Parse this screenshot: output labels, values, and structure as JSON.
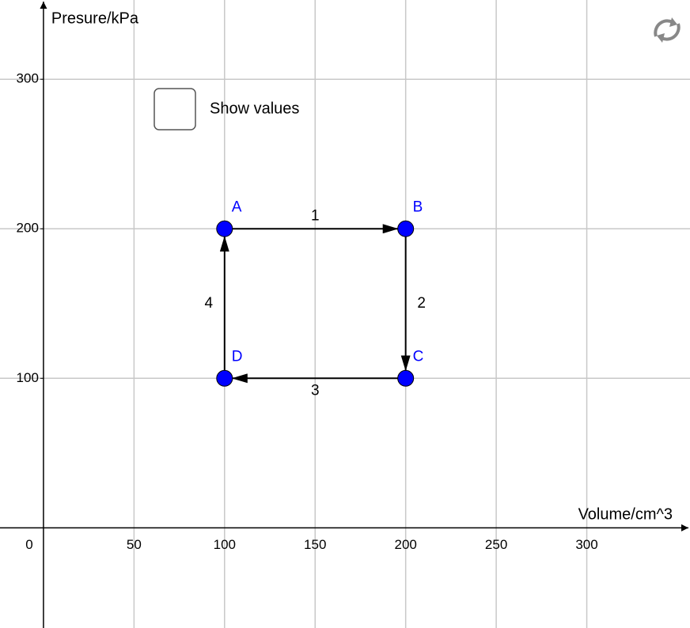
{
  "chart_data": {
    "type": "scatter",
    "x_label": "Volume/cm^3",
    "y_label": "Presure/kPa",
    "xlim": [
      -24,
      357
    ],
    "ylim": [
      -67,
      353
    ],
    "xticks": [
      0,
      50,
      100,
      150,
      200,
      250,
      300
    ],
    "yticks": [
      100,
      200,
      300
    ],
    "grid": true,
    "points": {
      "labels": [
        "A",
        "B",
        "C",
        "D"
      ],
      "x": [
        100,
        200,
        200,
        100
      ],
      "y": [
        200,
        200,
        100,
        100
      ],
      "color": "#0000ff"
    },
    "path": {
      "labels": [
        "1",
        "2",
        "3",
        "4"
      ],
      "color": "#000000"
    },
    "checkbox_label": "Show values"
  }
}
